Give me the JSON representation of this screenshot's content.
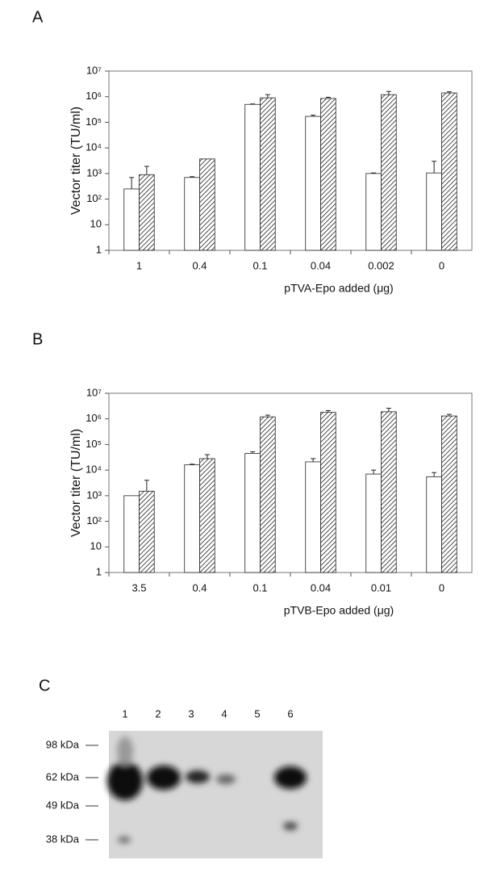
{
  "chart_data": [
    {
      "type": "bar",
      "panel": "A",
      "y_label": "Vector titer (TU/ml)",
      "x_label": "pTVA-Epo added (μg)",
      "log_scale": true,
      "ylim": [
        1,
        10000000
      ],
      "yticks": [
        1,
        10,
        {
          "value": 100,
          "label": "10²"
        },
        {
          "value": 1000,
          "label": "10³"
        },
        {
          "value": 10000,
          "label": "10⁴"
        },
        {
          "value": 100000,
          "label": "10⁵"
        },
        {
          "value": 1000000,
          "label": "10⁶"
        },
        {
          "value": 10000000,
          "label": "10⁷"
        }
      ],
      "categories": [
        "1",
        "0.4",
        "0.1",
        "0.04",
        "0.002",
        "0"
      ],
      "series": [
        {
          "color": "#ffffff",
          "values": [
            250,
            700,
            500000,
            170000,
            1000,
            1050
          ],
          "errors": [
            450,
            50,
            20000,
            20000,
            50,
            1950
          ]
        },
        {
          "color": "hatch",
          "values": [
            900,
            3700,
            900000,
            850000,
            1200000,
            1400000
          ],
          "errors": [
            1000,
            null,
            300000,
            100000,
            400000,
            150000
          ]
        }
      ]
    },
    {
      "type": "bar",
      "panel": "B",
      "y_label": "Vector titer (TU/ml)",
      "x_label": "pTVB-Epo added (μg)",
      "log_scale": true,
      "ylim": [
        1,
        10000000
      ],
      "yticks": [
        1,
        10,
        {
          "value": 100,
          "label": "10²"
        },
        {
          "value": 1000,
          "label": "10³"
        },
        {
          "value": 10000,
          "label": "10⁴"
        },
        {
          "value": 100000,
          "label": "10⁵"
        },
        {
          "value": 1000000,
          "label": "10⁶"
        },
        {
          "value": 10000000,
          "label": "10⁷"
        }
      ],
      "categories": [
        "3.5",
        "0.4",
        "0.1",
        "0.04",
        "0.01",
        "0"
      ],
      "series": [
        {
          "color": "#ffffff",
          "values": [
            1000,
            16000,
            45000,
            21000,
            7000,
            5500
          ],
          "errors": [
            null,
            1000,
            7000,
            7000,
            3000,
            2500
          ]
        },
        {
          "color": "hatch",
          "values": [
            1500,
            28000,
            1200000,
            1800000,
            1900000,
            1300000
          ],
          "errors": [
            2500,
            12000,
            200000,
            300000,
            700000,
            200000
          ]
        }
      ]
    }
  ],
  "blot": {
    "panel": "C",
    "lanes": [
      "1",
      "2",
      "3",
      "4",
      "5",
      "6"
    ],
    "markers": [
      "98 kDa",
      "62 kDa",
      "49 kDa",
      "38 kDa"
    ]
  }
}
